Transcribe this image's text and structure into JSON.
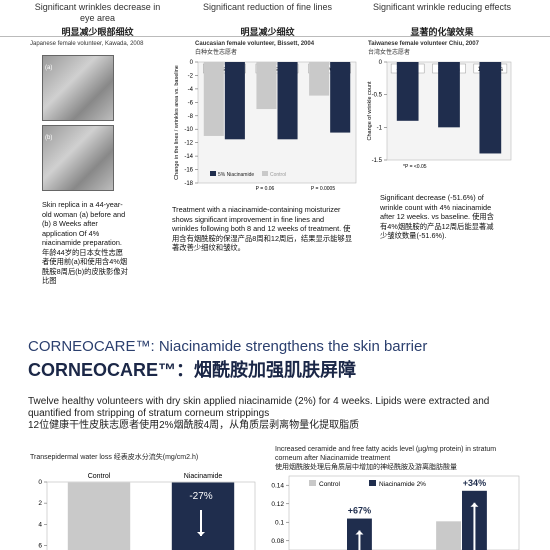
{
  "columns": [
    {
      "title": "Significant wrinkles decrease in eye area",
      "title_cn": "明显减少眼部细纹",
      "source": "Japanese female volunteer, Kawada, 2008",
      "photo_labels": [
        "(a)",
        "(b)"
      ],
      "text": "Skin replica in a 44-year-old woman (a) before and (b) 8 Weeks after application Of 4% niacinamide preparation. 年龄44岁的日本女性志愿者使用前(a)和使用含4%烟酰胺8周后(b)的皮肤影像对比图"
    },
    {
      "title": "Significant reduction of fine lines",
      "title_cn": "明显减少细纹",
      "source": "Caucasian female volunteer, Bissett, 2004",
      "source_cn": "白种女性志愿者",
      "chart": {
        "type": "bar",
        "categories": [
          "4 weeks",
          "8 weeks",
          "12 weeks"
        ],
        "series": [
          {
            "name": "5% Niacinamide",
            "color": "#1f2d4d",
            "values": [
              -11.5,
              -11.5,
              -10.5
            ]
          },
          {
            "name": "Control",
            "color": "#c9c9c9",
            "values": [
              -11,
              -7,
              -5
            ]
          }
        ],
        "ylim": [
          -18,
          0
        ],
        "yticks": [
          0,
          -2,
          -4,
          -6,
          -8,
          -10,
          -12,
          -14,
          -16,
          -18
        ],
        "y_label": "Change in the lines / wrinkles area vs. baseline",
        "annotations": [
          "P = 0.06",
          "P = 0.0005"
        ]
      },
      "text": "Treatment with a niacinamide-containing moisturizer shows significant improvement in fine lines and wrinkles following both 8 and 12 weeks of treatment. 使用含有烟酰胺的保湿产品8周和12周后，结果显示能够显著改善少细纹和皱纹。"
    },
    {
      "title": "Significant wrinkle reducing effects",
      "title_cn": "显著的化皱效果",
      "source": "Taiwanese female volunteer Chiu, 2007",
      "source_cn": "台湾女性志愿者",
      "chart": {
        "type": "bar",
        "categories": [
          "4 weeks",
          "8 weeks",
          "12 weeks"
        ],
        "series": [
          {
            "name": "Niacinamide",
            "color": "#1f2d4d",
            "values": [
              -0.9,
              -1.0,
              -1.4
            ]
          }
        ],
        "ylim": [
          -1.5,
          0
        ],
        "yticks": [
          0,
          -0.5,
          -1,
          -1.5
        ],
        "y_label": "Change of wrinkle count",
        "annotations": [
          "*P = <0.05"
        ]
      },
      "text": "Significant decrease (-51.6%) of wrinkle count with 4% niacinamide after 12 weeks. vs baseline. 使用含有4%烟酰胺的产品12周后能显著减少皱纹数量(-51.6%)."
    }
  ],
  "section": {
    "title": "CORNEOCARE™: Niacinamide strengthens the skin barrier",
    "title_cn": "CORNEOCARE™：烟酰胺加强肌肤屏障",
    "text": "Twelve healthy volunteers with dry skin applied niacinamide (2%) for 4 weeks. Lipids were extracted and quantified from stripping of stratum corneum strippings",
    "text_cn": "12位健康干性皮肤志愿者使用2%烟酰胺4周，从角质层剥离物量化提取脂质"
  },
  "charts": [
    {
      "type": "bar",
      "title": "Transepidermal water loss 经表皮水分流失(mg/cm2.h)",
      "categories": [
        "Control",
        "Niacinamide"
      ],
      "ylim": [
        0,
        7
      ],
      "yticks": [
        0,
        2,
        4,
        6
      ],
      "y_inverted": true,
      "colors": [
        "#c9c9c9",
        "#1f2d4d"
      ],
      "annotations": [
        "-27%"
      ]
    },
    {
      "type": "bar",
      "title": "Increased ceramide and free fatty acids level (µg/mg protein) in stratum corneum after Niacinamide treatment",
      "title_cn": "使用烟酰胺处理后角质层中增加的神经酰胺及游离脂肪酸量",
      "categories": [
        null,
        null
      ],
      "series": [
        {
          "name": "Control",
          "color": "#c9c9c9",
          "values": [
            null,
            0.101
          ]
        },
        {
          "name": "Niacinamide 2%",
          "color": "#1f2d4d",
          "values": [
            0.104,
            0.134
          ]
        }
      ],
      "ylim": [
        0.07,
        0.15
      ],
      "yticks": [
        0.08,
        0.1,
        0.12,
        0.14
      ],
      "annotations": [
        "+67%",
        "+34%"
      ]
    }
  ]
}
